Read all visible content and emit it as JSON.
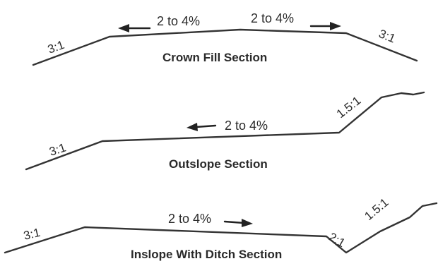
{
  "sections": [
    {
      "title": "Crown Fill Section",
      "labels": {
        "left_slope": "3:1",
        "right_slope": "3:1",
        "grade_left": "2 to 4%",
        "grade_right": "2 to 4%"
      }
    },
    {
      "title": "Outslope Section",
      "labels": {
        "left_slope": "3:1",
        "right_slope": "1.5:1",
        "grade": "2 to 4%"
      }
    },
    {
      "title": "Inslope With Ditch Section",
      "labels": {
        "left_slope": "3:1",
        "ditch_slope": "2:1",
        "right_slope": "1.5:1",
        "grade": "2 to 4%"
      }
    }
  ],
  "colors": {
    "line": "#333333",
    "text": "#2a2a2a"
  }
}
